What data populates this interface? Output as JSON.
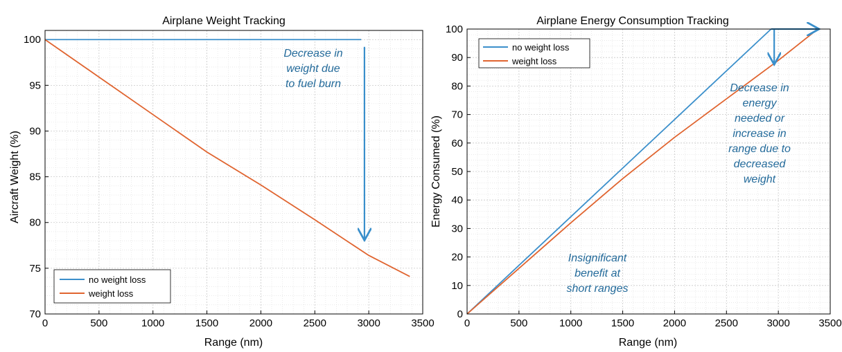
{
  "colors": {
    "no_loss": "#3a8fcb",
    "loss": "#e0642f",
    "annotation": "#236a9a",
    "arrow": "#3a8fcb"
  },
  "chart_data": [
    {
      "type": "line",
      "title": "Airplane Weight Tracking",
      "xlabel": "Range (nm)",
      "ylabel": "Aircraft Weight (%)",
      "xlim": [
        0,
        3500
      ],
      "ylim": [
        70,
        101
      ],
      "xticks": [
        "0",
        "500",
        "1000",
        "1500",
        "2000",
        "2500",
        "3000",
        "3500"
      ],
      "yticks": [
        "70",
        "75",
        "80",
        "85",
        "90",
        "95",
        "100"
      ],
      "grid": true,
      "legend": "bottom-left",
      "series": [
        {
          "name": "no weight loss",
          "x": [
            0,
            2930
          ],
          "y": [
            100,
            100
          ]
        },
        {
          "name": "weight loss",
          "x": [
            0,
            500,
            1000,
            1500,
            2000,
            2500,
            3000,
            3380
          ],
          "y": [
            100,
            95.9,
            91.8,
            87.7,
            84.1,
            80.3,
            76.4,
            74.1
          ]
        }
      ],
      "annotations": [
        {
          "lines": [
            "Decrease in",
            "weight due",
            "to fuel burn"
          ]
        }
      ],
      "arrows": [
        {
          "from": [
            2960,
            99.2
          ],
          "to": [
            2960,
            78.2
          ]
        }
      ]
    },
    {
      "type": "line",
      "title": "Airplane Energy Consumption Tracking",
      "xlabel": "Range (nm)",
      "ylabel": "Energy Consumed (%)",
      "xlim": [
        0,
        3500
      ],
      "ylim": [
        0,
        100
      ],
      "xticks": [
        "0",
        "500",
        "1000",
        "1500",
        "2000",
        "2500",
        "3000",
        "3500"
      ],
      "yticks": [
        "0",
        "10",
        "20",
        "30",
        "40",
        "50",
        "60",
        "70",
        "80",
        "90",
        "100"
      ],
      "grid": true,
      "legend": "top-left",
      "series": [
        {
          "name": "no weight loss",
          "x": [
            0,
            2930
          ],
          "y": [
            0,
            100
          ]
        },
        {
          "name": "weight loss",
          "x": [
            0,
            500,
            1000,
            1500,
            2000,
            2500,
            3000,
            3380
          ],
          "y": [
            0,
            16,
            32,
            47.5,
            62,
            75.5,
            89,
            100
          ]
        }
      ],
      "annotations": [
        {
          "lines": [
            "Decrease in",
            "energy",
            "needed or",
            "increase in",
            "range due to",
            "decreased",
            "weight"
          ]
        },
        {
          "lines": [
            "Insignificant",
            "benefit at",
            "short ranges"
          ]
        }
      ],
      "arrows": [
        {
          "from": [
            2930,
            100
          ],
          "to": [
            3380,
            100
          ]
        },
        {
          "from": [
            2960,
            100
          ],
          "to": [
            2960,
            88
          ]
        }
      ]
    }
  ]
}
